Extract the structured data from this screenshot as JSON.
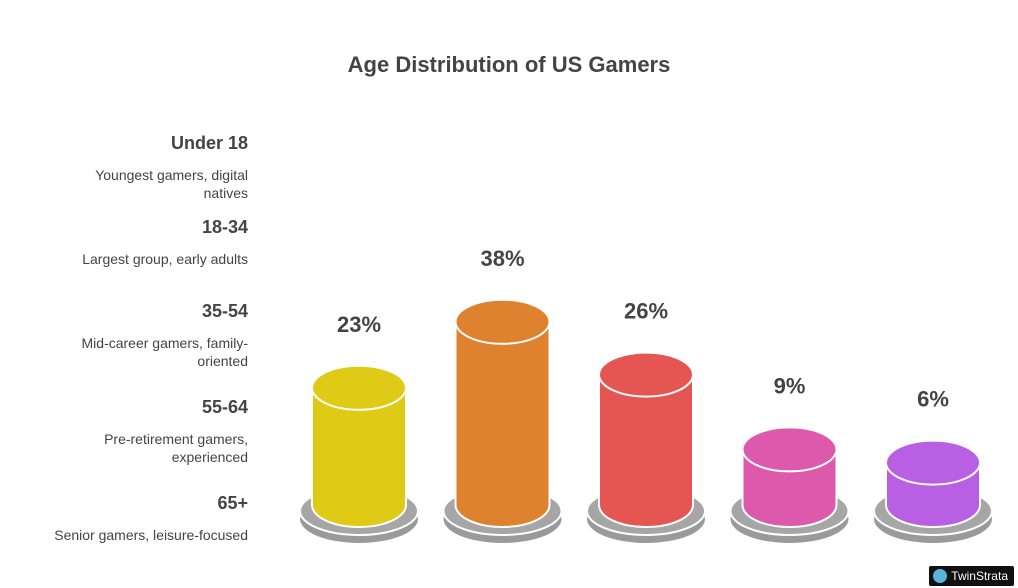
{
  "chart_data": {
    "type": "bar",
    "title": "Age Distribution of US Gamers",
    "categories": [
      "Under 18",
      "18-34",
      "35-54",
      "55-64",
      "65+"
    ],
    "descriptions": [
      "Youngest gamers, digital natives",
      "Largest group, early adults",
      "Mid-career gamers, family-oriented",
      "Pre-retirement gamers, experienced",
      "Senior gamers, leisure-focused"
    ],
    "values": [
      23,
      38,
      26,
      9,
      6
    ],
    "value_labels": [
      "23%",
      "38%",
      "26%",
      "9%",
      "6%"
    ],
    "colors": [
      "#dfcb16",
      "#de8230",
      "#e55652",
      "#dd59ab",
      "#b95fe3"
    ],
    "unit": "%",
    "grid": false
  },
  "branding": {
    "label": "TwinStrata"
  }
}
